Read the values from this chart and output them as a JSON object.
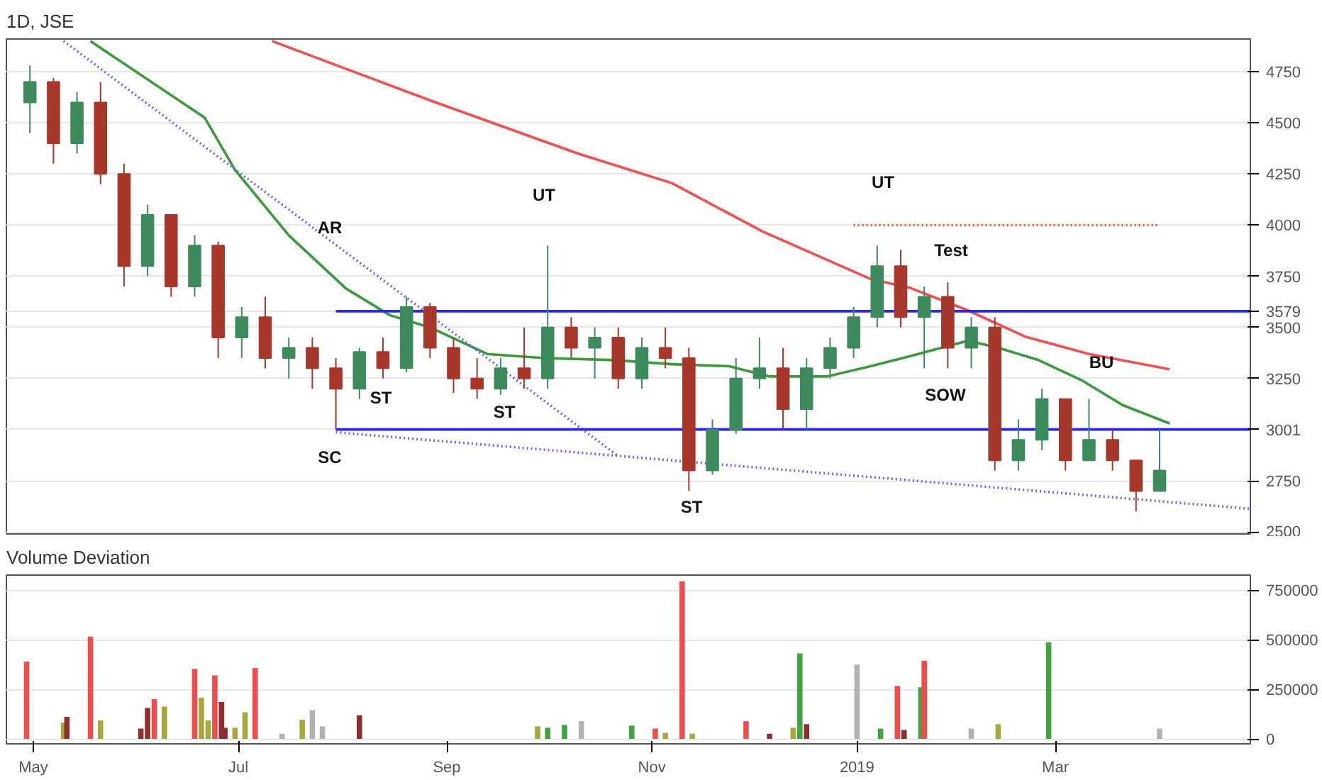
{
  "chart_data": [
    {
      "type": "candlestick",
      "title": "1D, JSE",
      "xlim": [
        "2018-04-23",
        "2019-04-28"
      ],
      "ylim": [
        2490,
        4910
      ],
      "yticks": [
        2500,
        2750,
        3001,
        3250,
        3500,
        3579,
        3750,
        4000,
        4250,
        4500,
        4750
      ],
      "tick_labels": "y",
      "grid": "y",
      "x": [
        "2018-04-30",
        "2018-05-07",
        "2018-05-14",
        "2018-05-21",
        "2018-05-28",
        "2018-06-04",
        "2018-06-11",
        "2018-06-18",
        "2018-06-25",
        "2018-07-02",
        "2018-07-09",
        "2018-07-16",
        "2018-07-23",
        "2018-07-30",
        "2018-08-06",
        "2018-08-13",
        "2018-08-20",
        "2018-08-27",
        "2018-09-03",
        "2018-09-10",
        "2018-09-17",
        "2018-09-24",
        "2018-10-01",
        "2018-10-08",
        "2018-10-15",
        "2018-10-22",
        "2018-10-29",
        "2018-11-05",
        "2018-11-12",
        "2018-11-19",
        "2018-11-26",
        "2018-12-03",
        "2018-12-10",
        "2018-12-17",
        "2018-12-24",
        "2018-12-31",
        "2019-01-07",
        "2019-01-14",
        "2019-01-21",
        "2019-01-28",
        "2019-02-04",
        "2019-02-11",
        "2019-02-18",
        "2019-02-25",
        "2019-03-04",
        "2019-03-11",
        "2019-03-18",
        "2019-03-25",
        "2019-04-01"
      ],
      "ohlc": [
        [
          4600,
          4780,
          4450,
          4700
        ],
        [
          4700,
          4720,
          4300,
          4400
        ],
        [
          4400,
          4650,
          4350,
          4600
        ],
        [
          4600,
          4700,
          4200,
          4250
        ],
        [
          4250,
          4300,
          3700,
          3800
        ],
        [
          3800,
          4100,
          3750,
          4050
        ],
        [
          4050,
          4050,
          3650,
          3700
        ],
        [
          3700,
          3950,
          3650,
          3900
        ],
        [
          3900,
          3920,
          3350,
          3450
        ],
        [
          3450,
          3600,
          3350,
          3550
        ],
        [
          3550,
          3650,
          3300,
          3350
        ],
        [
          3350,
          3450,
          3250,
          3400
        ],
        [
          3400,
          3450,
          3200,
          3300
        ],
        [
          3300,
          3350,
          3000,
          3200
        ],
        [
          3200,
          3400,
          3150,
          3380
        ],
        [
          3380,
          3450,
          3250,
          3300
        ],
        [
          3300,
          3650,
          3280,
          3600
        ],
        [
          3600,
          3620,
          3350,
          3400
        ],
        [
          3400,
          3450,
          3180,
          3250
        ],
        [
          3250,
          3350,
          3150,
          3200
        ],
        [
          3200,
          3350,
          3170,
          3300
        ],
        [
          3300,
          3500,
          3200,
          3250
        ],
        [
          3250,
          3900,
          3200,
          3500
        ],
        [
          3500,
          3550,
          3350,
          3400
        ],
        [
          3400,
          3500,
          3250,
          3450
        ],
        [
          3450,
          3500,
          3200,
          3250
        ],
        [
          3250,
          3450,
          3200,
          3400
        ],
        [
          3400,
          3500,
          3300,
          3350
        ],
        [
          3350,
          3400,
          2700,
          2800
        ],
        [
          2800,
          3050,
          2780,
          3000
        ],
        [
          3000,
          3350,
          2980,
          3250
        ],
        [
          3250,
          3450,
          3200,
          3300
        ],
        [
          3300,
          3400,
          3000,
          3100
        ],
        [
          3100,
          3350,
          3000,
          3300
        ],
        [
          3300,
          3450,
          3250,
          3400
        ],
        [
          3400,
          3600,
          3350,
          3550
        ],
        [
          3550,
          3900,
          3500,
          3800
        ],
        [
          3800,
          3880,
          3500,
          3550
        ],
        [
          3550,
          3700,
          3300,
          3650
        ],
        [
          3650,
          3720,
          3300,
          3400
        ],
        [
          3400,
          3550,
          3300,
          3500
        ],
        [
          3500,
          3550,
          2800,
          2850
        ],
        [
          2850,
          3050,
          2800,
          2950
        ],
        [
          2950,
          3200,
          2900,
          3150
        ],
        [
          3150,
          3150,
          2800,
          2850
        ],
        [
          2850,
          3150,
          2850,
          2950
        ],
        [
          2950,
          3000,
          2800,
          2850
        ],
        [
          2850,
          2850,
          2600,
          2700
        ],
        [
          2700,
          3000,
          2700,
          2800
        ]
      ],
      "colors": [
        "#3d8a5c",
        "#a8372b",
        "#3d8a5c",
        "#a8372b",
        "#a8372b",
        "#3d8a5c",
        "#a8372b",
        "#3d8a5c",
        "#a8372b",
        "#3d8a5c",
        "#a8372b",
        "#3d8a5c",
        "#a8372b",
        "#a8372b",
        "#3d8a5c",
        "#a8372b",
        "#3d8a5c",
        "#a8372b",
        "#a8372b",
        "#a8372b",
        "#3d8a5c",
        "#a8372b",
        "#3d8a5c",
        "#a8372b",
        "#3d8a5c",
        "#a8372b",
        "#3d8a5c",
        "#a8372b",
        "#a8372b",
        "#3d8a5c",
        "#3d8a5c",
        "#3d8a5c",
        "#a8372b",
        "#3d8a5c",
        "#3d8a5c",
        "#3d8a5c",
        "#3d8a5c",
        "#a8372b",
        "#3d8a5c",
        "#a8372b",
        "#3d8a5c",
        "#a8372b",
        "#3d8a5c",
        "#3d8a5c",
        "#a8372b",
        "#3d8a5c",
        "#a8372b",
        "#a8372b",
        "#3d8a5c"
      ],
      "series": [
        {
          "type": "line",
          "color": "#3c9a3c",
          "line_style": "solid",
          "x": [
            "2018-05-18",
            "2018-06-21",
            "2018-06-30",
            "2018-07-16",
            "2018-08-02",
            "2018-08-15",
            "2018-08-27",
            "2018-09-13",
            "2018-09-30",
            "2018-10-21",
            "2018-11-07",
            "2018-11-24",
            "2018-12-06",
            "2018-12-23",
            "2019-01-05",
            "2019-01-17",
            "2019-02-03",
            "2019-02-12",
            "2019-02-24",
            "2019-03-09",
            "2019-03-21",
            "2019-04-04"
          ],
          "values": [
            4900,
            4525,
            4270,
            3950,
            3690,
            3560,
            3500,
            3370,
            3350,
            3340,
            3320,
            3310,
            3260,
            3260,
            3310,
            3360,
            3435,
            3400,
            3340,
            3240,
            3120,
            3030
          ]
        },
        {
          "type": "line",
          "color": "#f05050",
          "line_style": "solid",
          "x": [
            "2018-07-11",
            "2018-08-27",
            "2018-10-10",
            "2018-11-07",
            "2018-12-04",
            "2019-01-05",
            "2019-01-17",
            "2019-02-03",
            "2019-02-20",
            "2019-03-11",
            "2019-04-04"
          ],
          "values": [
            4900,
            4610,
            4350,
            4205,
            3968,
            3737,
            3692,
            3583,
            3455,
            3370,
            3295
          ]
        },
        {
          "type": "line",
          "color": "#6666ff",
          "line_style": "dotted",
          "x": [
            "2018-05-10",
            "2018-10-22"
          ],
          "values": [
            4900,
            2870
          ]
        },
        {
          "type": "line",
          "color": "#6666ff",
          "line_style": "dotted",
          "x": [
            "2018-07-30",
            "2019-04-28"
          ],
          "values": [
            2987,
            2613
          ]
        },
        {
          "type": "line",
          "color": "#2626ff",
          "line_style": "solid",
          "x": [
            "2018-07-30",
            "2019-04-28"
          ],
          "values": [
            3579,
            3579
          ]
        },
        {
          "type": "line",
          "color": "#2626ff",
          "line_style": "solid",
          "x": [
            "2018-07-30",
            "2019-04-28"
          ],
          "values": [
            3001,
            3001
          ]
        },
        {
          "type": "line",
          "color": "#f05050",
          "line_style": "dotted",
          "x": [
            "2018-12-31",
            "2019-04-01"
          ],
          "values": [
            4000,
            4000
          ]
        }
      ],
      "annotations": [
        "AR",
        "ST",
        "ST",
        "UT",
        "UT",
        "Test",
        "SOW",
        "BU",
        "SC",
        "ST"
      ]
    },
    {
      "type": "bar",
      "title": "Volume Deviation",
      "xlim": [
        "2018-04-23",
        "2019-04-28"
      ],
      "ylim": [
        -25000,
        826000
      ],
      "yticks": [
        0,
        250000,
        500000,
        750000
      ],
      "grid": "y",
      "xticks": [
        {
          "value": "2018-05-01",
          "label": "May"
        },
        {
          "value": "2018-07-01",
          "label": "Jul"
        },
        {
          "value": "2018-09-01",
          "label": "Sep"
        },
        {
          "value": "2018-11-01",
          "label": "Nov"
        },
        {
          "value": "2019-01-01",
          "label": "2019"
        },
        {
          "value": "2019-03-01",
          "label": "Mar"
        }
      ],
      "x": [
        "2018-04-29",
        "2018-05-10",
        "2018-05-11",
        "2018-05-18",
        "2018-05-21",
        "2018-06-02",
        "2018-06-04",
        "2018-06-06",
        "2018-06-09",
        "2018-06-18",
        "2018-06-20",
        "2018-06-22",
        "2018-06-24",
        "2018-06-26",
        "2018-06-27",
        "2018-06-30",
        "2018-07-03",
        "2018-07-06",
        "2018-07-14",
        "2018-07-20",
        "2018-07-23",
        "2018-07-26",
        "2018-07-30",
        "2018-08-06",
        "2018-09-28",
        "2018-10-01",
        "2018-10-06",
        "2018-10-11",
        "2018-10-26",
        "2018-11-02",
        "2018-11-05",
        "2018-11-10",
        "2018-11-13",
        "2018-11-29",
        "2018-12-06",
        "2018-12-13",
        "2018-12-15",
        "2018-12-17",
        "2019-01-01",
        "2019-01-08",
        "2019-01-13",
        "2019-01-15",
        "2019-01-20",
        "2019-01-21",
        "2019-02-04",
        "2019-02-12",
        "2019-02-22",
        "2019-02-27",
        "2019-04-01"
      ],
      "values": [
        390000,
        82000,
        111000,
        516000,
        93000,
        52000,
        156000,
        200000,
        163000,
        353000,
        208000,
        93000,
        320000,
        186000,
        56000,
        56000,
        134000,
        357000,
        26000,
        97000,
        145000,
        63000,
        null,
        119000,
        63000,
        56000,
        70000,
        89000,
        67000,
        52000,
        30000,
        795000,
        26000,
        89000,
        26000,
        56000,
        431000,
        74000,
        375000,
        52000,
        267000,
        45000,
        260000,
        394000,
        52000,
        74000,
        null,
        486000,
        52000
      ],
      "colors": [
        "#f24b4b",
        "#a5a83c",
        "#8e2f2f",
        "#f24b4b",
        "#a5a83c",
        "#8e2f2f",
        "#8e2f2f",
        "#f24b4b",
        "#a5a83c",
        "#f24b4b",
        "#a5a83c",
        "#a5a83c",
        "#f24b4b",
        "#8e2f2f",
        "#8e2f2f",
        "#a5a83c",
        "#a5a83c",
        "#f24b4b",
        "#b2b2b2",
        "#a5a83c",
        "#b2b2b2",
        "#b2b2b2",
        "#f24b4b",
        "#8e2f2f",
        "#a5a83c",
        "#3fa33f",
        "#3fa33f",
        "#b2b2b2",
        "#3fa33f",
        "#f24b4b",
        "#a5a83c",
        "#f24b4b",
        "#a5a83c",
        "#f24b4b",
        "#8e2f2f",
        "#a5a83c",
        "#3fa33f",
        "#8e2f2f",
        "#b2b2b2",
        "#3fa33f",
        "#f24b4b",
        "#8e2f2f",
        "#3fa33f",
        "#f24b4b",
        "#b2b2b2",
        "#a5a83c",
        "#f24b4b",
        "#3fa33f",
        "#b2b2b2"
      ]
    }
  ]
}
